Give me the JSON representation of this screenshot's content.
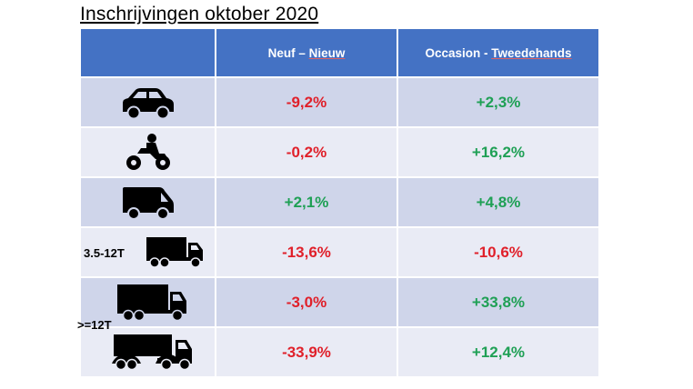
{
  "title": "Inschrijvingen oktober 2020",
  "header": {
    "col1_a": "Neuf – ",
    "col1_b": "Nieuw",
    "col2_a": "Occasion - ",
    "col2_b": "Tweedehands"
  },
  "colors": {
    "header": "#4472C4",
    "band_dark": "#CFD5EA",
    "band_light": "#E9EBF5",
    "negative": "#E0202A",
    "positive": "#1FA055"
  },
  "rows": [
    {
      "icon": "car-icon",
      "new": "-9,2%",
      "used": "+2,3%"
    },
    {
      "icon": "motorcycle-icon",
      "new": "-0,2%",
      "used": "+16,2%"
    },
    {
      "icon": "van-icon",
      "new": "+2,1%",
      "used": "+4,8%"
    },
    {
      "icon": "truck-icon",
      "label": "3.5-12T",
      "new": "-13,6%",
      "used": "-10,6%"
    },
    {
      "icon": "truck-icon",
      "label": ">=12T",
      "new": "-3,0%",
      "used": "+33,8%"
    },
    {
      "icon": "semi-truck-icon",
      "new": "-33,9%",
      "used": "+12,4%"
    }
  ]
}
